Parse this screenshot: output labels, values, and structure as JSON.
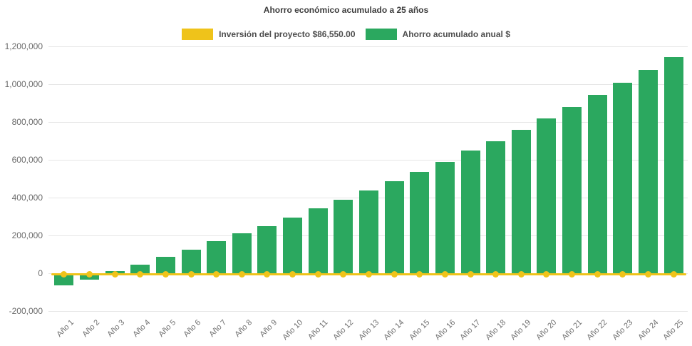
{
  "title": "Ahorro económico acumulado a 25 años",
  "legend": {
    "items": [
      {
        "label": "Inversión del proyecto $86,550.00",
        "color": "#efc31a"
      },
      {
        "label": "Ahorro acumulado anual $",
        "color": "#2ba85f"
      }
    ]
  },
  "chart_data": {
    "type": "bar",
    "title": "Ahorro económico acumulado a 25 años",
    "categories": [
      "Año 1",
      "Año 2",
      "Año 3",
      "Año 4",
      "Año 5",
      "Año 6",
      "Año 7",
      "Año 8",
      "Año 9",
      "Año 10",
      "Año 11",
      "Año 12",
      "Año 13",
      "Año 14",
      "Año 15",
      "Año 16",
      "Año 17",
      "Año 18",
      "Año 19",
      "Año 20",
      "Año 21",
      "Año 22",
      "Año 23",
      "Año 24",
      "Año 25"
    ],
    "series": [
      {
        "name": "Ahorro acumulado anual $",
        "type": "bar",
        "color": "#2ba85f",
        "values": [
          -63000,
          -34000,
          11000,
          46000,
          88000,
          124000,
          170000,
          212000,
          250000,
          295000,
          344000,
          390000,
          439000,
          485000,
          536000,
          589000,
          649000,
          700000,
          757000,
          820000,
          879000,
          944000,
          1008000,
          1074000,
          1143000
        ]
      },
      {
        "name": "Inversión del proyecto $86,550.00",
        "type": "line",
        "color": "#efc31a",
        "marker": "circle",
        "investment_amount_display": "$86,550.00",
        "values": [
          0,
          0,
          0,
          0,
          0,
          0,
          0,
          0,
          0,
          0,
          0,
          0,
          0,
          0,
          0,
          0,
          0,
          0,
          0,
          0,
          0,
          0,
          0,
          0,
          0
        ]
      }
    ],
    "xlabel": "",
    "ylabel": "",
    "ylim": [
      -200000,
      1200000
    ],
    "y_tick_values": [
      1200000,
      1000000,
      800000,
      600000,
      400000,
      200000,
      0,
      -200000
    ],
    "y_tick_labels": [
      "1,200,000",
      "1,000,000",
      "800,000",
      "600,000",
      "400,000",
      "200,000",
      "0",
      "-200,000"
    ],
    "x_label_rotation": -45,
    "grid": true,
    "legend_position": "top"
  }
}
